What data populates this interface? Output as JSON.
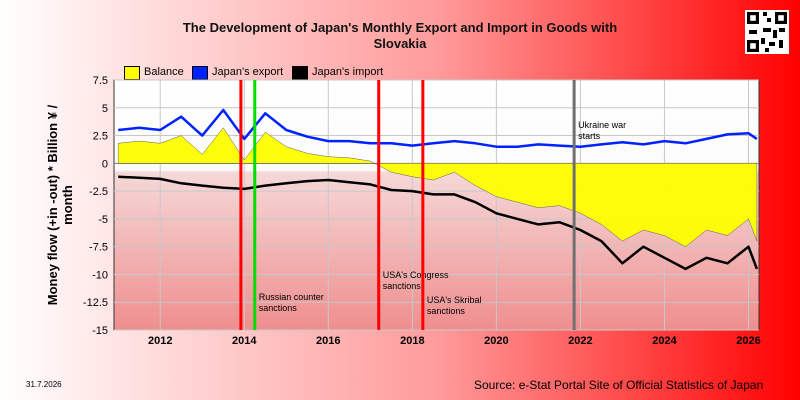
{
  "page": {
    "title_line1": "The Development of Japan's Monthly Export and Import in Goods with",
    "title_line2": "Slovakia",
    "date_stamp": "31.7.2026",
    "source": "Source: e-Stat Portal Site of Official Statistics of Japan"
  },
  "chart_data": {
    "type": "line",
    "title": "The Development of Japan's Monthly Export and Import in Goods with Slovakia",
    "ylabel": "Money flow (+in -out) * Billion ¥ / month",
    "xlabel": "",
    "ylim": [
      -15,
      7.5
    ],
    "xlim": [
      2010.9,
      2026.25
    ],
    "yticks": [
      "7.5",
      "5",
      "2.5",
      "0",
      "-2.5",
      "-5",
      "-7.5",
      "-10",
      "-12.5",
      "-15"
    ],
    "ytick_values": [
      7.5,
      5,
      2.5,
      0,
      -2.5,
      -5,
      -7.5,
      -10,
      -12.5,
      -15
    ],
    "xticks": [
      "2012",
      "2014",
      "2016",
      "2018",
      "2020",
      "2022",
      "2024",
      "2026"
    ],
    "xtick_values": [
      2012,
      2014,
      2016,
      2018,
      2020,
      2022,
      2024,
      2026
    ],
    "legend_placement": "top-left",
    "grid": true,
    "colors": {
      "balance": "#ffff00",
      "export": "#0022ff",
      "import": "#000000"
    },
    "series": [
      {
        "name": "Balance",
        "x": [
          2011.0,
          2011.5,
          2012.0,
          2012.5,
          2013.0,
          2013.5,
          2014.0,
          2014.5,
          2015.0,
          2015.5,
          2016.0,
          2016.5,
          2017.0,
          2017.5,
          2018.0,
          2018.5,
          2019.0,
          2019.5,
          2020.0,
          2020.5,
          2021.0,
          2021.5,
          2022.0,
          2022.5,
          2023.0,
          2023.5,
          2024.0,
          2024.5,
          2025.0,
          2025.5,
          2026.0,
          2026.2
        ],
        "values": [
          1.8,
          2.0,
          1.8,
          2.5,
          0.8,
          3.2,
          0.3,
          2.8,
          1.5,
          0.9,
          0.6,
          0.5,
          0.2,
          -0.8,
          -1.2,
          -1.5,
          -0.8,
          -2.0,
          -3.0,
          -3.5,
          -4.0,
          -3.8,
          -4.5,
          -5.5,
          -7.0,
          -6.0,
          -6.5,
          -7.5,
          -6.0,
          -6.5,
          -5.0,
          -7.0
        ]
      },
      {
        "name": "Japan's export",
        "x": [
          2011.0,
          2011.5,
          2012.0,
          2012.5,
          2013.0,
          2013.5,
          2014.0,
          2014.5,
          2015.0,
          2015.5,
          2016.0,
          2016.5,
          2017.0,
          2017.5,
          2018.0,
          2018.5,
          2019.0,
          2019.5,
          2020.0,
          2020.5,
          2021.0,
          2021.5,
          2022.0,
          2022.5,
          2023.0,
          2023.5,
          2024.0,
          2024.5,
          2025.0,
          2025.5,
          2026.0,
          2026.2
        ],
        "values": [
          3.0,
          3.2,
          3.0,
          4.2,
          2.5,
          4.8,
          2.2,
          4.5,
          3.0,
          2.4,
          2.0,
          2.0,
          1.8,
          1.8,
          1.6,
          1.8,
          2.0,
          1.8,
          1.5,
          1.5,
          1.7,
          1.6,
          1.5,
          1.7,
          1.9,
          1.7,
          2.0,
          1.8,
          2.2,
          2.6,
          2.7,
          2.2
        ]
      },
      {
        "name": "Japan's import",
        "x": [
          2011.0,
          2011.5,
          2012.0,
          2012.5,
          2013.0,
          2013.5,
          2014.0,
          2014.5,
          2015.0,
          2015.5,
          2016.0,
          2016.5,
          2017.0,
          2017.5,
          2018.0,
          2018.5,
          2019.0,
          2019.5,
          2020.0,
          2020.5,
          2021.0,
          2021.5,
          2022.0,
          2022.5,
          2023.0,
          2023.5,
          2024.0,
          2024.5,
          2025.0,
          2025.5,
          2026.0,
          2026.2
        ],
        "values": [
          -1.2,
          -1.3,
          -1.4,
          -1.8,
          -2.0,
          -2.2,
          -2.3,
          -2.0,
          -1.8,
          -1.6,
          -1.5,
          -1.7,
          -1.9,
          -2.4,
          -2.5,
          -2.8,
          -2.8,
          -3.5,
          -4.5,
          -5.0,
          -5.5,
          -5.3,
          -6.0,
          -7.0,
          -9.0,
          -7.5,
          -8.5,
          -9.5,
          -8.5,
          -9.0,
          -7.5,
          -9.5
        ]
      }
    ],
    "annotations": [
      {
        "x": 2013.92,
        "color": "#ff0000",
        "text": ""
      },
      {
        "x": 2014.25,
        "color": "#00dd00",
        "text": "Russian counter sanctions"
      },
      {
        "x": 2017.2,
        "color": "#ff0000",
        "text": "USA's Congress sanctions"
      },
      {
        "x": 2018.25,
        "color": "#ff0000",
        "text": "USA's Skribal sanctions"
      },
      {
        "x": 2021.85,
        "color": "#707070",
        "text": "Ukraine war starts"
      }
    ]
  }
}
